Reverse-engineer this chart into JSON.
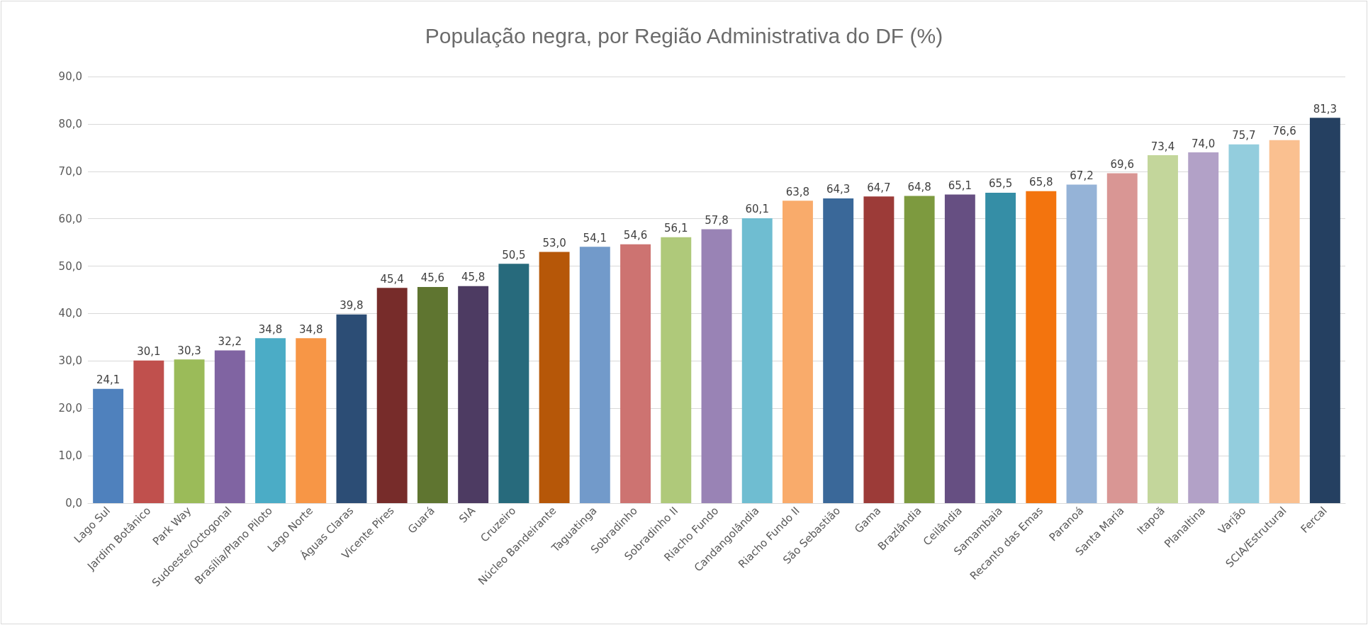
{
  "chart_data": {
    "type": "bar",
    "title": "População negra, por Região Administrativa do DF (%)",
    "categories": [
      "Lago Sul",
      "Jardim Botânico",
      "Park Way",
      "Sudoeste/Octogonal",
      "Brasília/Plano Piloto",
      "Lago Norte",
      "Águas Claras",
      "Vicente Pires",
      "Guará",
      "SIA",
      "Cruzeiro",
      "Núcleo Bandeirante",
      "Taguatinga",
      "Sobradinho",
      "Sobradinho II",
      "Riacho Fundo",
      "Candangolândia",
      "Riacho Fundo II",
      "São Sebastião",
      "Gama",
      "Brazlândia",
      "Ceilândia",
      "Samambaia",
      "Recanto das Emas",
      "Paranoá",
      "Santa Maria",
      "Itapoã",
      "Planaltina",
      "Varjão",
      "SCIA/Estrutural",
      "Fercal"
    ],
    "values": [
      24.1,
      30.1,
      30.3,
      32.2,
      34.8,
      34.8,
      39.8,
      45.4,
      45.6,
      45.8,
      50.5,
      53.0,
      54.1,
      54.6,
      56.1,
      57.8,
      60.1,
      63.8,
      64.3,
      64.7,
      64.8,
      65.1,
      65.5,
      65.8,
      67.2,
      69.6,
      73.4,
      74.0,
      75.7,
      76.6,
      81.3
    ],
    "value_labels": [
      "24,1",
      "30,1",
      "30,3",
      "32,2",
      "34,8",
      "34,8",
      "39,8",
      "45,4",
      "45,6",
      "45,8",
      "50,5",
      "53,0",
      "54,1",
      "54,6",
      "56,1",
      "57,8",
      "60,1",
      "63,8",
      "64,3",
      "64,7",
      "64,8",
      "65,1",
      "65,5",
      "65,8",
      "67,2",
      "69,6",
      "73,4",
      "74,0",
      "75,7",
      "76,6",
      "81,3"
    ],
    "colors": [
      "#4f81bd",
      "#c0504d",
      "#9bbb59",
      "#8064a2",
      "#4bacc6",
      "#f79646",
      "#2c4d75",
      "#772c2a",
      "#5f7530",
      "#4d3b62",
      "#276a7c",
      "#b65708",
      "#729aca",
      "#cd7371",
      "#afc97a",
      "#9983b5",
      "#6fbdd1",
      "#f9ab6b",
      "#3a6899",
      "#9c3b38",
      "#7d9a3f",
      "#664f82",
      "#358ea6",
      "#f3740e",
      "#95b3d7",
      "#d99694",
      "#c3d69b",
      "#b2a1c7",
      "#93cddd",
      "#fac090",
      "#254061"
    ],
    "ylim": [
      0,
      90
    ],
    "yticks": [
      {
        "value": 0,
        "label": "0,0"
      },
      {
        "value": 10,
        "label": "10,0"
      },
      {
        "value": 20,
        "label": "20,0"
      },
      {
        "value": 30,
        "label": "30,0"
      },
      {
        "value": 40,
        "label": "40,0"
      },
      {
        "value": 50,
        "label": "50,0"
      },
      {
        "value": 60,
        "label": "60,0"
      },
      {
        "value": 70,
        "label": "70,0"
      },
      {
        "value": 80,
        "label": "80,0"
      },
      {
        "value": 90,
        "label": "90,0"
      }
    ],
    "grid": "y"
  }
}
